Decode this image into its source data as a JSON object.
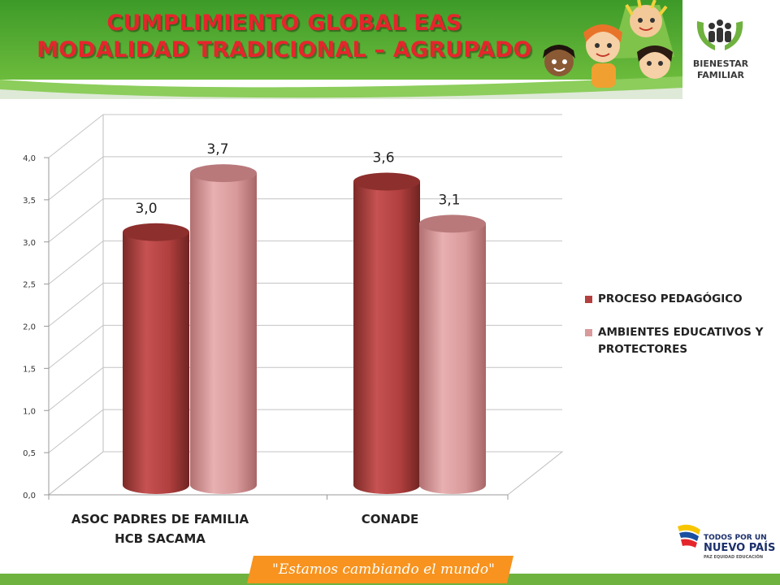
{
  "header": {
    "title_line1": "CUMPLIMIENTO GLOBAL EAS",
    "title_line2": "MODALIDAD TRADICIONAL – AGRUPADO",
    "logo_line1": "BIENESTAR",
    "logo_line2": "FAMILIAR"
  },
  "footer": {
    "slogan": "\"Estamos cambiando el mundo\"",
    "brand_line1": "TODOS POR UN",
    "brand_line2": "NUEVO PAÍS",
    "brand_line3": "PAZ  EQUIDAD  EDUCACIÓN"
  },
  "colors": {
    "banner_green": "#4aa02c",
    "title_red": "#e4262c",
    "series1": "#b3403f",
    "series2": "#d99a9b",
    "slogan_orange": "#f7931e"
  },
  "chart_data": {
    "type": "bar",
    "style": "3d-cylinder",
    "categories": [
      "ASOC PADRES DE FAMILIA HCB SACAMA",
      "CONADE"
    ],
    "category_lines": [
      [
        "ASOC PADRES DE FAMILIA",
        "HCB SACAMA"
      ],
      [
        "CONADE"
      ]
    ],
    "series": [
      {
        "name": "PROCESO PEDAGÓGICO",
        "values": [
          3.0,
          3.6
        ],
        "labels": [
          "3,0",
          "3,6"
        ],
        "color": "#b3403f"
      },
      {
        "name": "AMBIENTES EDUCATIVOS Y PROTECTORES",
        "name_lines": [
          "AMBIENTES EDUCATIVOS Y",
          "PROTECTORES"
        ],
        "values": [
          3.7,
          3.1
        ],
        "labels": [
          "3,7",
          "3,1"
        ],
        "color": "#d99a9b"
      }
    ],
    "ylim": [
      0,
      4.0
    ],
    "yticks": [
      0,
      0.5,
      1.0,
      1.5,
      2.0,
      2.5,
      3.0,
      3.5,
      4.0
    ],
    "ytick_labels": [
      "0,0",
      "0,5",
      "1,0",
      "1,5",
      "2,0",
      "2,5",
      "3,0",
      "3,5",
      "4,0"
    ],
    "grid": true,
    "legend": "right"
  }
}
